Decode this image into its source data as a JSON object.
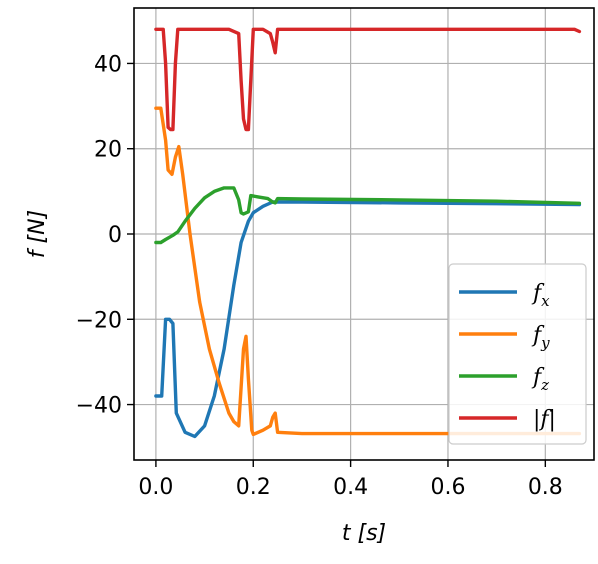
{
  "chart_data": {
    "type": "line",
    "xlabel": "t [s]",
    "ylabel": "f [N]",
    "xlim": [
      -0.045,
      0.9
    ],
    "ylim": [
      -53,
      53
    ],
    "xticks": [
      0.0,
      0.2,
      0.4,
      0.6,
      0.8
    ],
    "xtick_labels": [
      "0.0",
      "0.2",
      "0.4",
      "0.6",
      "0.8"
    ],
    "yticks": [
      -40,
      -20,
      0,
      20,
      40
    ],
    "ytick_labels": [
      "−40",
      "−20",
      "0",
      "20",
      "40"
    ],
    "grid": true,
    "legend_position": "lower-right",
    "series": [
      {
        "name": "f_x",
        "label_main": "f",
        "label_sub": "x",
        "color": "#1f77b4",
        "x": [
          0.0,
          0.012,
          0.02,
          0.028,
          0.035,
          0.042,
          0.06,
          0.08,
          0.1,
          0.12,
          0.14,
          0.16,
          0.175,
          0.19,
          0.2,
          0.22,
          0.24,
          0.3,
          0.5,
          0.7,
          0.87
        ],
        "y": [
          -38,
          -38,
          -20,
          -20,
          -21,
          -42,
          -46.5,
          -47.5,
          -45,
          -38,
          -27,
          -12,
          -2,
          3,
          5,
          6.5,
          7.5,
          7.5,
          7.3,
          7.1,
          6.9
        ]
      },
      {
        "name": "f_y",
        "label_main": "f",
        "label_sub": "y",
        "color": "#ff7f0e",
        "x": [
          0.0,
          0.01,
          0.02,
          0.025,
          0.033,
          0.04,
          0.047,
          0.055,
          0.07,
          0.09,
          0.11,
          0.13,
          0.15,
          0.16,
          0.17,
          0.175,
          0.18,
          0.185,
          0.19,
          0.197,
          0.2,
          0.22,
          0.235,
          0.24,
          0.245,
          0.25,
          0.3,
          0.5,
          0.7,
          0.87
        ],
        "y": [
          29.5,
          29.5,
          22,
          15,
          14,
          18,
          20.5,
          14,
          0,
          -16,
          -27,
          -35,
          -42,
          -44,
          -45,
          -36,
          -27,
          -24,
          -34,
          -46,
          -47,
          -46,
          -45,
          -43,
          -42,
          -46.5,
          -46.8,
          -46.8,
          -46.8,
          -46.8
        ]
      },
      {
        "name": "f_z",
        "label_main": "f",
        "label_sub": "z",
        "color": "#2ca02c",
        "x": [
          0.0,
          0.01,
          0.02,
          0.035,
          0.045,
          0.06,
          0.08,
          0.1,
          0.12,
          0.14,
          0.16,
          0.17,
          0.175,
          0.18,
          0.19,
          0.195,
          0.21,
          0.23,
          0.24,
          0.245,
          0.25,
          0.3,
          0.5,
          0.7,
          0.87
        ],
        "y": [
          -2,
          -2,
          -1.3,
          -0.3,
          0.5,
          3,
          6,
          8.5,
          10,
          10.8,
          10.8,
          8,
          5,
          4.7,
          5.2,
          9,
          8.7,
          8.3,
          7.5,
          7.3,
          8.3,
          8.2,
          8,
          7.7,
          7.2
        ]
      },
      {
        "name": "|f|",
        "label_main": "|f|",
        "label_sub": "",
        "color": "#d62728",
        "x": [
          0.0,
          0.015,
          0.02,
          0.025,
          0.03,
          0.035,
          0.04,
          0.045,
          0.05,
          0.1,
          0.15,
          0.17,
          0.175,
          0.18,
          0.185,
          0.19,
          0.2,
          0.22,
          0.235,
          0.24,
          0.245,
          0.25,
          0.3,
          0.5,
          0.7,
          0.86,
          0.87
        ],
        "y": [
          48,
          48,
          40,
          25,
          24.5,
          24.5,
          40,
          48,
          48,
          48,
          48,
          47,
          36,
          27,
          24.5,
          24.5,
          48,
          48,
          47,
          45,
          42.5,
          48,
          48,
          48,
          48,
          48,
          47.5
        ]
      }
    ]
  }
}
